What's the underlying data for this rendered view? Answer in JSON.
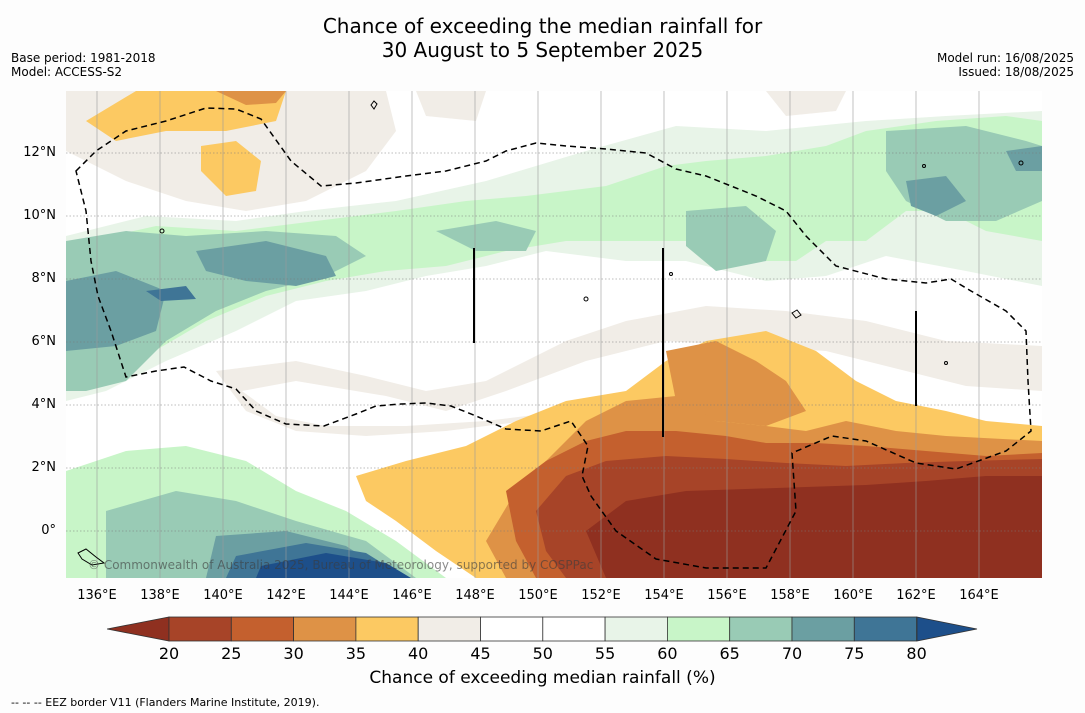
{
  "header": {
    "title_line1": "Chance of exceeding the median rainfall for",
    "title_line2": "30 August to 5 September 2025",
    "base_period": "Base period: 1981-2018",
    "model": "Model: ACCESS-S2",
    "model_run": "Model run: 16/08/2025",
    "issued": "Issued: 18/08/2025"
  },
  "map": {
    "copyright": "© Commonwealth of Australia 2025, Bureau of Meteorology, supported by COSPPac",
    "lat_ticks": [
      "12°N",
      "10°N",
      "8°N",
      "6°N",
      "4°N",
      "2°N",
      "0°"
    ],
    "lon_ticks": [
      "136°E",
      "138°E",
      "140°E",
      "142°E",
      "144°E",
      "146°E",
      "148°E",
      "150°E",
      "152°E",
      "154°E",
      "156°E",
      "158°E",
      "160°E",
      "162°E",
      "164°E"
    ]
  },
  "legend": {
    "ticks": [
      "20",
      "25",
      "30",
      "35",
      "40",
      "45",
      "50",
      "55",
      "60",
      "65",
      "70",
      "75",
      "80"
    ],
    "label": "Chance of exceeding median rainfall (%)",
    "under_color": "#8f3020",
    "over_color": "#1d4f8a",
    "colors": [
      "#a74428",
      "#c4602e",
      "#de9246",
      "#fcc962",
      "#f1ede7",
      "#ffffff",
      "#ffffff",
      "#e8f4e8",
      "#c8f5c8",
      "#99cbb5",
      "#6b9fa2",
      "#3f7596"
    ]
  },
  "footnote": "--  --  -- EEZ border V11 (Flanders Marine Institute, 2019)."
}
